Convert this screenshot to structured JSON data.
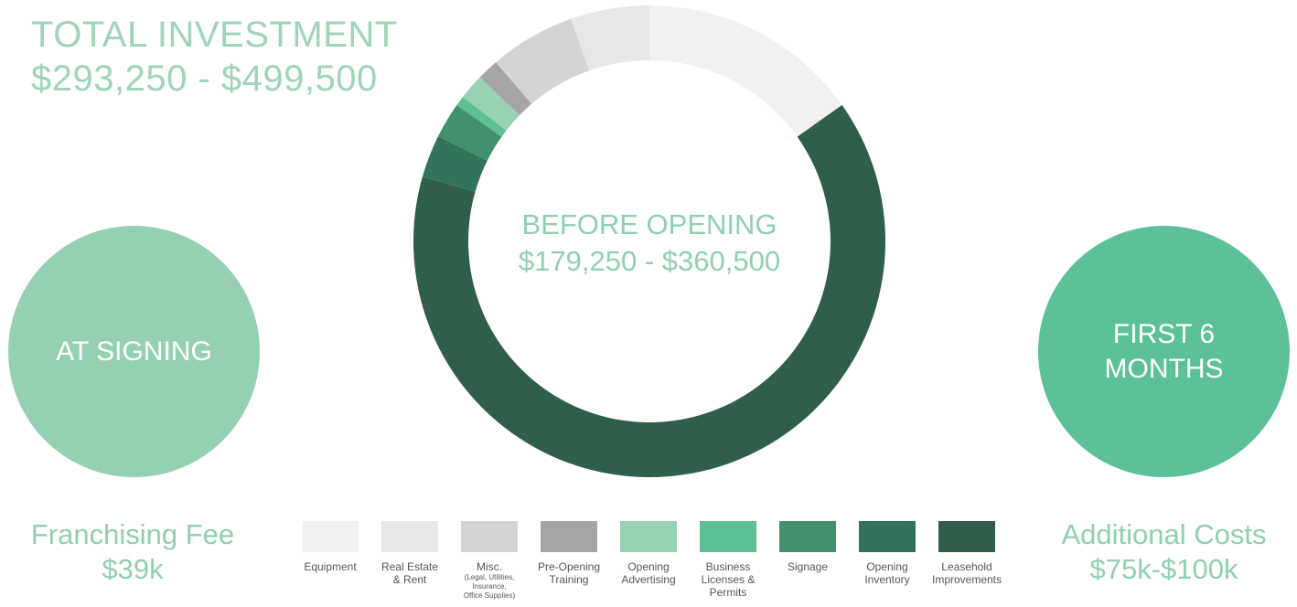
{
  "header": {
    "title_line1": "TOTAL INVESTMENT",
    "title_line2": "$293,250 - $499,500"
  },
  "center": {
    "line1": "BEFORE OPENING",
    "line2": "$179,250 - $360,500"
  },
  "left": {
    "bubble_text": "AT SIGNING",
    "label_line1": "Franchising Fee",
    "label_line2": "$39k",
    "bubble_color": "#95d1b1"
  },
  "right": {
    "bubble_line1": "FIRST 6",
    "bubble_line2": "MONTHS",
    "label_line1": "Additional Costs",
    "label_line2": "$75k-$100k",
    "bubble_color": "#5dc198"
  },
  "chart_data": {
    "type": "pie",
    "start": "12 o'clock, clockwise",
    "slices": [
      {
        "name": "Equipment",
        "value": 15.5,
        "color": "#f1f1f1"
      },
      {
        "name": "Leasehold Improvements",
        "value": 65.5,
        "color": "#2f5e4a"
      },
      {
        "name": "Opening Inventory",
        "value": 3.0,
        "color": "#34735b"
      },
      {
        "name": "Signage",
        "value": 2.5,
        "color": "#43916c"
      },
      {
        "name": "Business Licenses & Permits",
        "value": 0.7,
        "color": "#5cc094"
      },
      {
        "name": "Opening Advertising",
        "value": 1.8,
        "color": "#97d2b2"
      },
      {
        "name": "Pre-Opening Training",
        "value": 1.5,
        "color": "#a5a5a7"
      },
      {
        "name": "Misc.",
        "value": 6.0,
        "color": "#d3d4d5"
      },
      {
        "name": "Real Estate & Rent",
        "value": 5.5,
        "color": "#e7e7e8"
      }
    ],
    "legend": [
      {
        "label": "Equipment",
        "sub": "",
        "color": "#f1f1f1"
      },
      {
        "label": "Real Estate\n& Rent",
        "sub": "",
        "color": "#e7e7e8"
      },
      {
        "label": "Misc.",
        "sub": "(Legal, Utilities,\nInsurance,\nOffice Supplies)",
        "color": "#d3d4d5"
      },
      {
        "label": "Pre-Opening\nTraining",
        "sub": "",
        "color": "#a5a5a7"
      },
      {
        "label": "Opening\nAdvertising",
        "sub": "",
        "color": "#97d2b2"
      },
      {
        "label": "Business\nLicenses &\nPermits",
        "sub": "",
        "color": "#5cc094"
      },
      {
        "label": "Signage",
        "sub": "",
        "color": "#43916c"
      },
      {
        "label": "Opening\nInventory",
        "sub": "",
        "color": "#34735b"
      },
      {
        "label": "Leasehold\nImprovements",
        "sub": "",
        "color": "#2f5e4a"
      }
    ]
  }
}
